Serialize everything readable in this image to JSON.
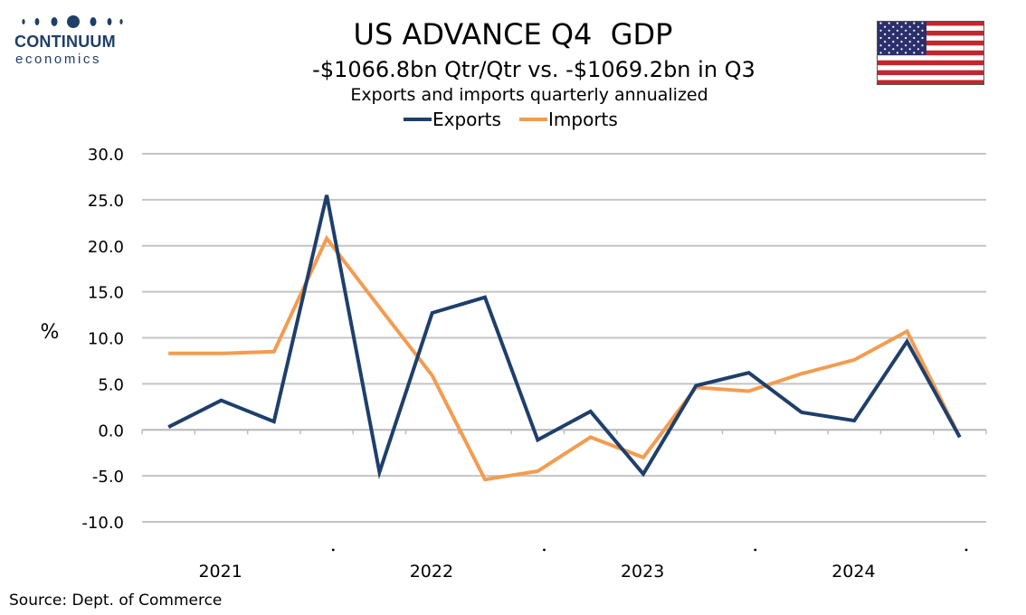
{
  "branding": {
    "logo_name": "CONTINUUM",
    "logo_sub": "economics",
    "brand_color": "#1f3f66"
  },
  "chart_data": {
    "type": "line",
    "title": "US ADVANCE Q4  GDP",
    "subtitle": "-$1066.8bn Qtr/Qtr vs. -$1069.2bn in Q3",
    "subtitle2": "Exports and imports quarterly annualized",
    "ylabel": "%",
    "xlabel": "",
    "ylim": [
      -10,
      30
    ],
    "yticks": [
      "30.0",
      "25.0",
      "20.0",
      "15.0",
      "10.0",
      "5.0",
      "0.0",
      "-5.0",
      "-10.0"
    ],
    "year_labels": [
      "2021",
      "2022",
      "2023",
      "2024"
    ],
    "x": [
      "2021 Q1",
      "2021 Q2",
      "2021 Q3",
      "2021 Q4",
      "2022 Q1",
      "2022 Q2",
      "2022 Q3",
      "2022 Q4",
      "2023 Q1",
      "2023 Q2",
      "2023 Q3",
      "2023 Q4",
      "2024 Q1",
      "2024 Q2",
      "2024 Q3",
      "2024 Q4"
    ],
    "series": [
      {
        "name": "Exports",
        "color": "#1f3f6b",
        "values": [
          0.3,
          3.2,
          0.9,
          25.5,
          -4.6,
          12.7,
          14.4,
          -1.1,
          2.0,
          -4.8,
          4.8,
          6.2,
          1.9,
          1.0,
          9.6,
          -0.8
        ]
      },
      {
        "name": "Imports",
        "color": "#f39c50",
        "values": [
          8.3,
          8.3,
          8.5,
          20.8,
          13.3,
          5.9,
          -5.4,
          -4.5,
          -0.8,
          -3.0,
          4.6,
          4.2,
          6.1,
          7.6,
          10.7,
          -0.8
        ]
      }
    ],
    "grid": true,
    "legend_position": "top-center"
  },
  "source": "Source: Dept. of Commerce"
}
